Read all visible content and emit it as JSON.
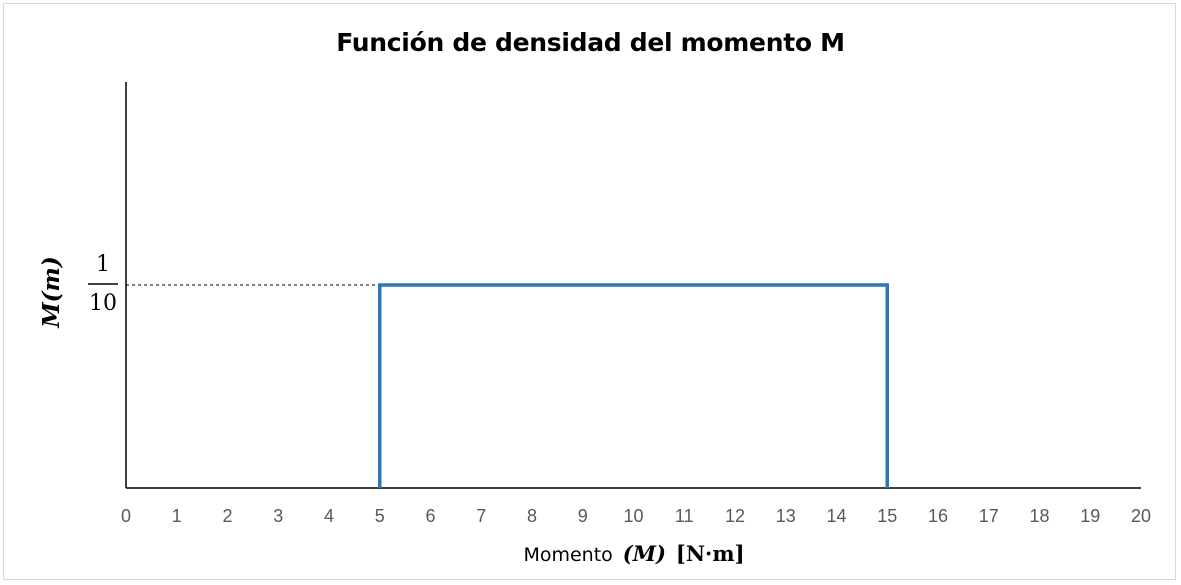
{
  "chart_data": {
    "type": "line",
    "title": "Función de densidad del momento M",
    "xlabel": {
      "text": "Momento",
      "variable": "(M)",
      "unit": "[N·m]"
    },
    "ylabel": "M(m)",
    "xlim": [
      0,
      20
    ],
    "ylim": [
      0,
      0.2
    ],
    "x_ticks": [
      "0",
      "1",
      "2",
      "3",
      "4",
      "5",
      "6",
      "7",
      "8",
      "9",
      "10",
      "11",
      "12",
      "13",
      "14",
      "15",
      "16",
      "17",
      "18",
      "19",
      "20"
    ],
    "y_tick": {
      "numerator": "1",
      "denominator": "10",
      "value": 0.1
    },
    "series": [
      {
        "x": [
          5,
          5,
          15,
          15
        ],
        "y": [
          0,
          0.1,
          0.1,
          0
        ],
        "color": "#2e75b6"
      }
    ],
    "reference_line": {
      "y": 0.1,
      "x_from": 0,
      "x_to": 5,
      "style": "dashed"
    },
    "grid": false,
    "legend": "none"
  }
}
